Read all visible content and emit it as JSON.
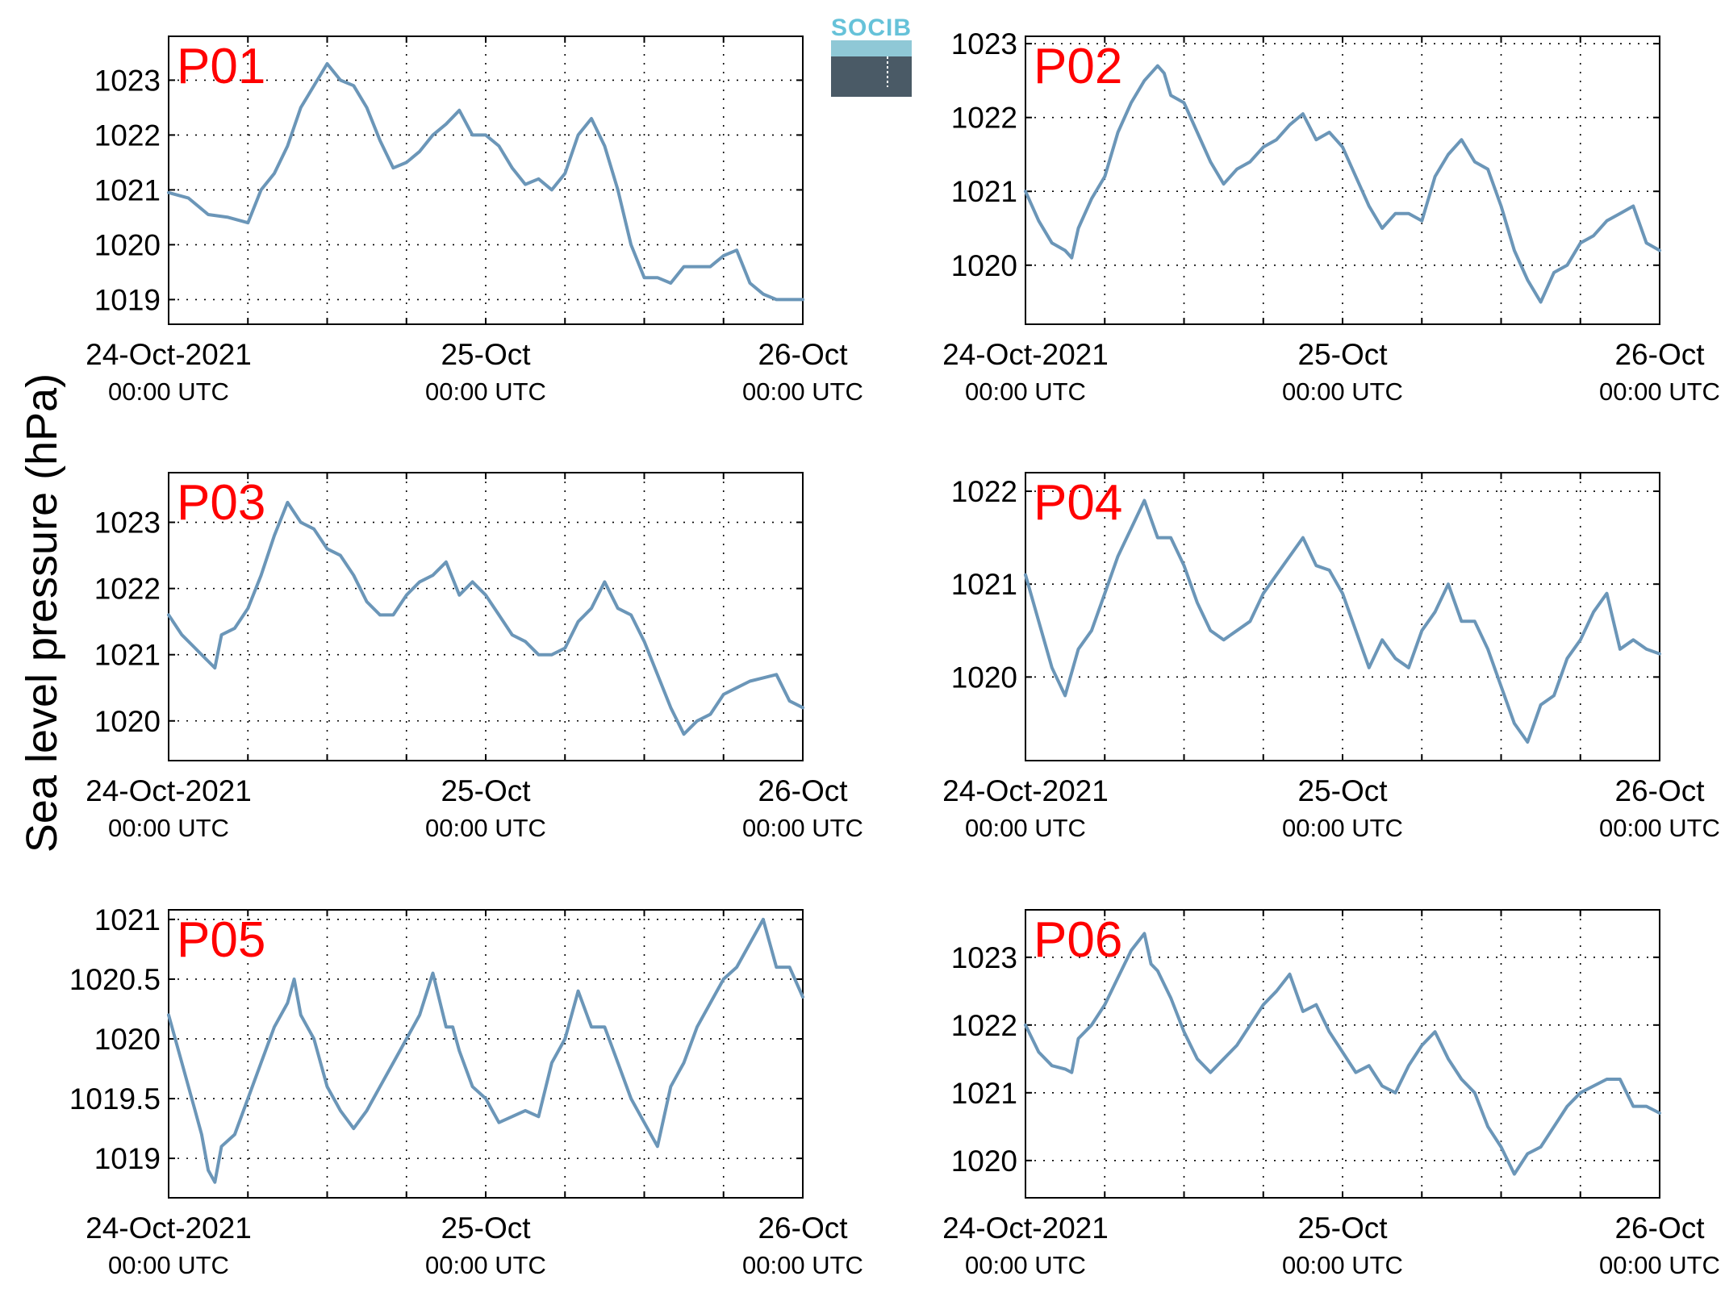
{
  "figure": {
    "ylabel": "Sea level pressure (hPa)",
    "logo_text": "SOCIB",
    "colors": {
      "line": "#6b96b8",
      "title": "#ff0000",
      "axis": "#000000",
      "grid": "#000000"
    }
  },
  "chart_data": [
    {
      "type": "line",
      "title": "P01",
      "ylim": [
        1018.55,
        1023.8
      ],
      "yticks": [
        1019,
        1020,
        1021,
        1022,
        1023
      ],
      "xticks": [
        {
          "main": "24-Oct-2021",
          "sub": "00:00 UTC"
        },
        {
          "main": "25-Oct",
          "sub": "00:00 UTC"
        },
        {
          "main": "26-Oct",
          "sub": "00:00 UTC"
        }
      ],
      "grid": true,
      "series": [
        {
          "x_hours": [
            0,
            1.5,
            3,
            4.5,
            6,
            7,
            8,
            9,
            10,
            12,
            13,
            14,
            15,
            16,
            17,
            18,
            19,
            20,
            21,
            22,
            23,
            24,
            25,
            26,
            27,
            28,
            29,
            30,
            31,
            32,
            33,
            34,
            35,
            36,
            37,
            38,
            39,
            40,
            41,
            42,
            43,
            44,
            45,
            46,
            47,
            48
          ],
          "y": [
            1020.95,
            1020.85,
            1020.55,
            1020.5,
            1020.4,
            1021.0,
            1021.3,
            1021.8,
            1022.5,
            1023.3,
            1023.0,
            1022.9,
            1022.5,
            1021.9,
            1021.4,
            1021.5,
            1021.7,
            1022.0,
            1022.2,
            1022.45,
            1022.0,
            1022.0,
            1021.8,
            1021.4,
            1021.1,
            1021.2,
            1021.0,
            1021.3,
            1022.0,
            1022.3,
            1021.8,
            1021.0,
            1020.0,
            1019.4,
            1019.4,
            1019.3,
            1019.6,
            1019.6,
            1019.6,
            1019.8,
            1019.9,
            1019.3,
            1019.1,
            1019.0,
            1019.0,
            1019.0
          ]
        }
      ]
    },
    {
      "type": "line",
      "title": "P02",
      "ylim": [
        1019.2,
        1023.1
      ],
      "yticks": [
        1020,
        1021,
        1022,
        1023
      ],
      "xticks": [
        {
          "main": "24-Oct-2021",
          "sub": "00:00 UTC"
        },
        {
          "main": "25-Oct",
          "sub": "00:00 UTC"
        },
        {
          "main": "26-Oct",
          "sub": "00:00 UTC"
        }
      ],
      "grid": true,
      "series": [
        {
          "x_hours": [
            0,
            1,
            2,
            3,
            3.5,
            4,
            5,
            6,
            7,
            8,
            9,
            10,
            10.5,
            11,
            12,
            13,
            14,
            15,
            16,
            17,
            18,
            19,
            20,
            21,
            22,
            23,
            24,
            25,
            26,
            27,
            28,
            29,
            30,
            31,
            32,
            33,
            34,
            35,
            36,
            37,
            38,
            39,
            40,
            41,
            42,
            43,
            44,
            45,
            46,
            47,
            48
          ],
          "y": [
            1021.0,
            1020.6,
            1020.3,
            1020.2,
            1020.1,
            1020.5,
            1020.9,
            1021.2,
            1021.8,
            1022.2,
            1022.5,
            1022.7,
            1022.6,
            1022.3,
            1022.2,
            1021.8,
            1021.4,
            1021.1,
            1021.3,
            1021.4,
            1021.6,
            1021.7,
            1021.9,
            1022.05,
            1021.7,
            1021.8,
            1021.6,
            1021.2,
            1020.8,
            1020.5,
            1020.7,
            1020.7,
            1020.6,
            1021.2,
            1021.5,
            1021.7,
            1021.4,
            1021.3,
            1020.8,
            1020.2,
            1019.8,
            1019.5,
            1019.9,
            1020.0,
            1020.3,
            1020.4,
            1020.6,
            1020.7,
            1020.8,
            1020.3,
            1020.2
          ]
        }
      ]
    },
    {
      "type": "line",
      "title": "P03",
      "ylim": [
        1019.4,
        1023.75
      ],
      "yticks": [
        1020,
        1021,
        1022,
        1023
      ],
      "xticks": [
        {
          "main": "24-Oct-2021",
          "sub": "00:00 UTC"
        },
        {
          "main": "25-Oct",
          "sub": "00:00 UTC"
        },
        {
          "main": "26-Oct",
          "sub": "00:00 UTC"
        }
      ],
      "grid": true,
      "series": [
        {
          "x_hours": [
            0,
            1,
            2,
            3,
            3.5,
            4,
            5,
            6,
            7,
            8,
            9,
            10,
            11,
            12,
            13,
            14,
            15,
            16,
            17,
            18,
            19,
            20,
            21,
            22,
            23,
            24,
            25,
            26,
            27,
            28,
            29,
            30,
            31,
            32,
            33,
            34,
            35,
            36,
            37,
            38,
            39,
            40,
            41,
            42,
            43,
            44,
            45,
            46,
            47,
            48
          ],
          "y": [
            1021.6,
            1021.3,
            1021.1,
            1020.9,
            1020.8,
            1021.3,
            1021.4,
            1021.7,
            1022.2,
            1022.8,
            1023.3,
            1023.0,
            1022.9,
            1022.6,
            1022.5,
            1022.2,
            1021.8,
            1021.6,
            1021.6,
            1021.9,
            1022.1,
            1022.2,
            1022.4,
            1021.9,
            1022.1,
            1021.9,
            1021.6,
            1021.3,
            1021.2,
            1021.0,
            1021.0,
            1021.1,
            1021.5,
            1021.7,
            1022.1,
            1021.7,
            1021.6,
            1021.2,
            1020.7,
            1020.2,
            1019.8,
            1020.0,
            1020.1,
            1020.4,
            1020.5,
            1020.6,
            1020.65,
            1020.7,
            1020.3,
            1020.2
          ]
        }
      ]
    },
    {
      "type": "line",
      "title": "P04",
      "ylim": [
        1019.1,
        1022.2
      ],
      "yticks": [
        1020,
        1021,
        1022
      ],
      "xticks": [
        {
          "main": "24-Oct-2021",
          "sub": "00:00 UTC"
        },
        {
          "main": "25-Oct",
          "sub": "00:00 UTC"
        },
        {
          "main": "26-Oct",
          "sub": "00:00 UTC"
        }
      ],
      "grid": true,
      "series": [
        {
          "x_hours": [
            0,
            1,
            2,
            3,
            4,
            5,
            6,
            7,
            8,
            9,
            10,
            11,
            12,
            13,
            14,
            15,
            16,
            17,
            18,
            19,
            20,
            21,
            22,
            23,
            24,
            25,
            26,
            27,
            28,
            29,
            30,
            31,
            32,
            33,
            34,
            35,
            36,
            37,
            38,
            39,
            40,
            41,
            42,
            43,
            44,
            45,
            46,
            47,
            48
          ],
          "y": [
            1021.1,
            1020.6,
            1020.1,
            1019.8,
            1020.3,
            1020.5,
            1020.9,
            1021.3,
            1021.6,
            1021.9,
            1021.5,
            1021.5,
            1021.2,
            1020.8,
            1020.5,
            1020.4,
            1020.5,
            1020.6,
            1020.9,
            1021.1,
            1021.3,
            1021.5,
            1021.2,
            1021.15,
            1020.9,
            1020.5,
            1020.1,
            1020.4,
            1020.2,
            1020.1,
            1020.5,
            1020.7,
            1021.0,
            1020.6,
            1020.6,
            1020.3,
            1019.9,
            1019.5,
            1019.3,
            1019.7,
            1019.8,
            1020.2,
            1020.4,
            1020.7,
            1020.9,
            1020.3,
            1020.4,
            1020.3,
            1020.25
          ]
        }
      ]
    },
    {
      "type": "line",
      "title": "P05",
      "ylim": [
        1018.67,
        1021.08
      ],
      "yticks": [
        1019,
        1019.5,
        1020,
        1020.5,
        1021
      ],
      "ytick_labels": [
        "1019",
        "1019.5",
        "1020",
        "1020.5",
        "1021"
      ],
      "xticks": [
        {
          "main": "24-Oct-2021",
          "sub": "00:00 UTC"
        },
        {
          "main": "25-Oct",
          "sub": "00:00 UTC"
        },
        {
          "main": "26-Oct",
          "sub": "00:00 UTC"
        }
      ],
      "grid": true,
      "series": [
        {
          "x_hours": [
            0,
            1,
            2,
            2.5,
            3,
            3.5,
            4,
            5,
            6,
            7,
            8,
            9,
            9.5,
            10,
            11,
            12,
            13,
            14,
            15,
            15.5,
            16,
            17,
            18,
            19,
            20,
            21,
            21.5,
            22,
            23,
            24,
            25,
            26,
            27,
            28,
            29,
            30,
            31,
            32,
            33,
            34,
            35,
            36,
            37,
            38,
            38.5,
            39,
            40,
            41,
            42,
            43,
            44,
            45,
            46,
            47,
            48
          ],
          "y": [
            1020.2,
            1019.8,
            1019.4,
            1019.2,
            1018.9,
            1018.8,
            1019.1,
            1019.2,
            1019.5,
            1019.8,
            1020.1,
            1020.3,
            1020.5,
            1020.2,
            1020.0,
            1019.6,
            1019.4,
            1019.25,
            1019.4,
            1019.5,
            1019.6,
            1019.8,
            1020.0,
            1020.2,
            1020.55,
            1020.1,
            1020.1,
            1019.9,
            1019.6,
            1019.5,
            1019.3,
            1019.35,
            1019.4,
            1019.35,
            1019.8,
            1020.0,
            1020.4,
            1020.1,
            1020.1,
            1019.8,
            1019.5,
            1019.3,
            1019.1,
            1019.6,
            1019.7,
            1019.8,
            1020.1,
            1020.3,
            1020.5,
            1020.6,
            1020.8,
            1021.0,
            1020.6,
            1020.6,
            1020.35
          ]
        }
      ]
    },
    {
      "type": "line",
      "title": "P06",
      "ylim": [
        1019.45,
        1023.7
      ],
      "yticks": [
        1020,
        1021,
        1022,
        1023
      ],
      "xticks": [
        {
          "main": "24-Oct-2021",
          "sub": "00:00 UTC"
        },
        {
          "main": "25-Oct",
          "sub": "00:00 UTC"
        },
        {
          "main": "26-Oct",
          "sub": "00:00 UTC"
        }
      ],
      "grid": true,
      "series": [
        {
          "x_hours": [
            0,
            1,
            2,
            3,
            3.5,
            4,
            5,
            6,
            7,
            8,
            9,
            9.5,
            10,
            11,
            12,
            13,
            14,
            15,
            16,
            17,
            18,
            19,
            20,
            21,
            22,
            23,
            24,
            25,
            26,
            27,
            28,
            29,
            30,
            31,
            32,
            33,
            34,
            35,
            36,
            37,
            38,
            39,
            40,
            41,
            42,
            43,
            44,
            45,
            46,
            47,
            48
          ],
          "y": [
            1022.0,
            1021.6,
            1021.4,
            1021.35,
            1021.3,
            1021.8,
            1022.0,
            1022.3,
            1022.7,
            1023.1,
            1023.35,
            1022.9,
            1022.8,
            1022.4,
            1021.9,
            1021.5,
            1021.3,
            1021.5,
            1021.7,
            1022.0,
            1022.3,
            1022.5,
            1022.75,
            1022.2,
            1022.3,
            1021.9,
            1021.6,
            1021.3,
            1021.4,
            1021.1,
            1021.0,
            1021.4,
            1021.7,
            1021.9,
            1021.5,
            1021.2,
            1021.0,
            1020.5,
            1020.2,
            1019.8,
            1020.1,
            1020.2,
            1020.5,
            1020.8,
            1021.0,
            1021.1,
            1021.2,
            1021.2,
            1020.8,
            1020.8,
            1020.7
          ]
        }
      ]
    }
  ]
}
